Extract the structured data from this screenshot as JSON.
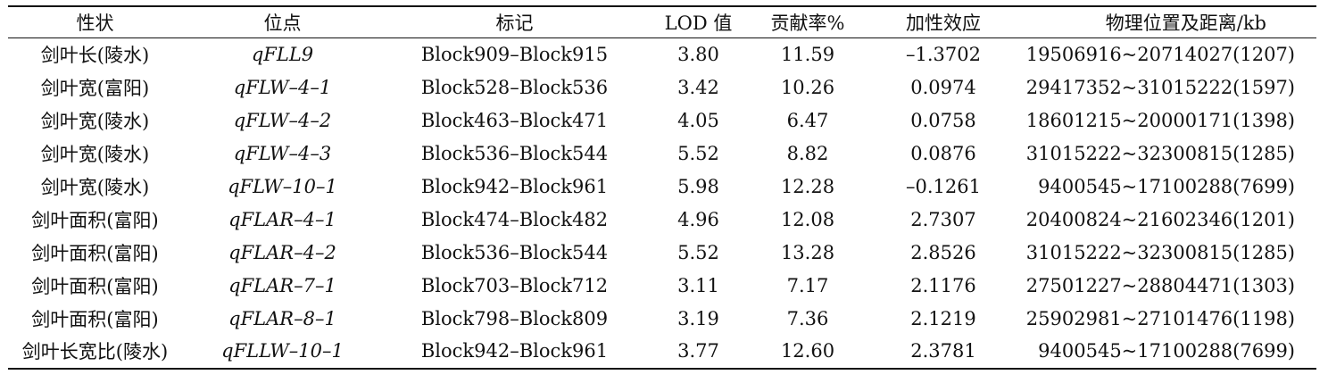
{
  "table": {
    "headers": [
      "性状",
      "位点",
      "标记",
      "LOD 值",
      "贡献率%",
      "加性效应",
      "物理位置及距离/kb"
    ],
    "rows": [
      [
        "剑叶长(陵水)",
        "qFLL9",
        "Block909–Block915",
        "3.80",
        "11.59",
        "–1.3702",
        "19506916~20714027(1207)"
      ],
      [
        "剑叶宽(富阳)",
        "qFLW–4–1",
        "Block528–Block536",
        "3.42",
        "10.26",
        "0.0974",
        "29417352~31015222(1597)"
      ],
      [
        "剑叶宽(陵水)",
        "qFLW–4–2",
        "Block463–Block471",
        "4.05",
        "6.47",
        "0.0758",
        "18601215~20000171(1398)"
      ],
      [
        "剑叶宽(陵水)",
        "qFLW–4–3",
        "Block536–Block544",
        "5.52",
        "8.82",
        "0.0876",
        "31015222~32300815(1285)"
      ],
      [
        "剑叶宽(陵水)",
        "qFLW–10–1",
        "Block942–Block961",
        "5.98",
        "12.28",
        "–0.1261",
        "9400545~17100288(7699)"
      ],
      [
        "剑叶面积(富阳)",
        "qFLAR–4–1",
        "Block474–Block482",
        "4.96",
        "12.08",
        "2.7307",
        "20400824~21602346(1201)"
      ],
      [
        "剑叶面积(富阳)",
        "qFLAR–4–2",
        "Block536–Block544",
        "5.52",
        "13.28",
        "2.8526",
        "31015222~32300815(1285)"
      ],
      [
        "剑叶面积(富阳)",
        "qFLAR–7–1",
        "Block703–Block712",
        "3.11",
        "7.17",
        "2.1176",
        "27501227~28804471(1303)"
      ],
      [
        "剑叶面积(富阳)",
        "qFLAR–8–1",
        "Block798–Block809",
        "3.19",
        "7.36",
        "2.1219",
        "25902981~27101476(1198)"
      ],
      [
        "剑叶长宽比(陵水)",
        "qFLLW–10–1",
        "Block942–Block961",
        "3.77",
        "12.60",
        "2.3781",
        "9400545~17100288(7699)"
      ]
    ]
  }
}
